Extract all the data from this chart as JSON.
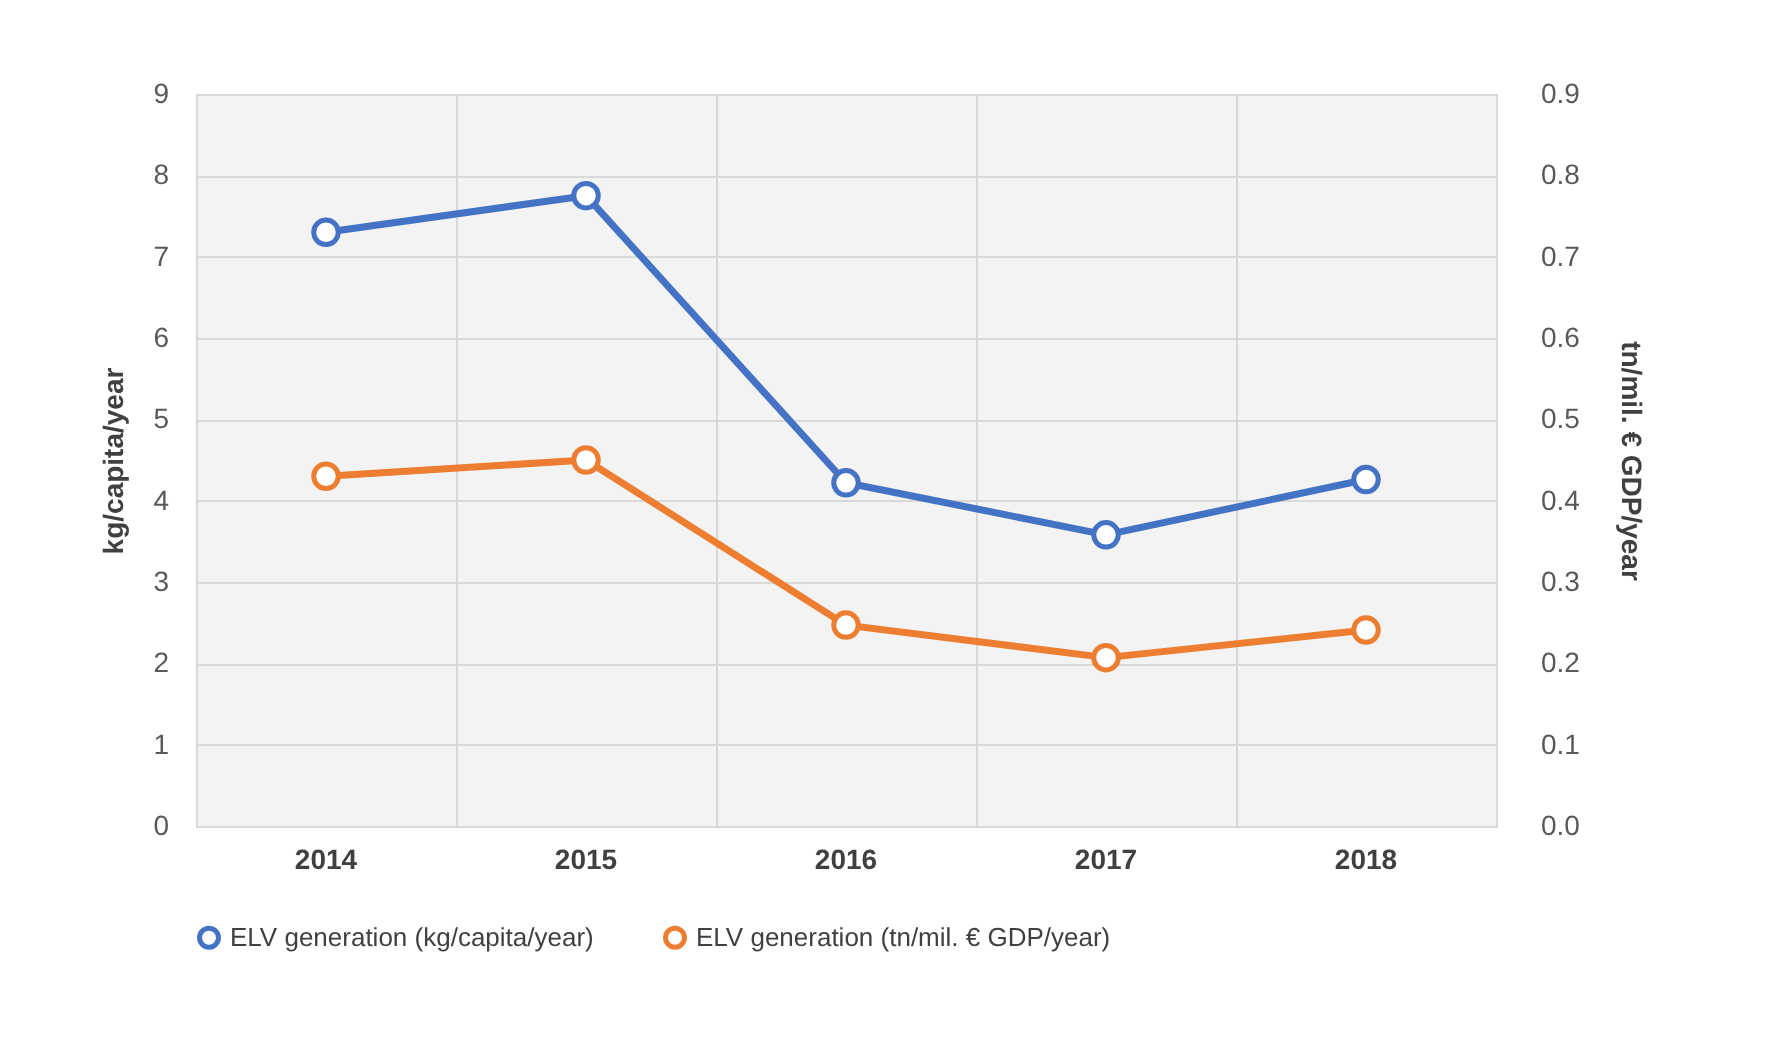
{
  "chart_data": {
    "type": "line",
    "categories": [
      "2014",
      "2015",
      "2016",
      "2017",
      "2018"
    ],
    "ylabel": "kg/capita/year",
    "y2label": "tn/mil. € GDP/year",
    "ylim": [
      0,
      9
    ],
    "yticks": [
      0,
      1,
      2,
      3,
      4,
      5,
      6,
      7,
      8,
      9
    ],
    "y2lim": [
      0,
      0.9
    ],
    "y2ticks": [
      {
        "value": 0,
        "label": "0.0"
      },
      {
        "value": 0.1,
        "label": "0.1"
      },
      {
        "value": 0.2,
        "label": "0.2"
      },
      {
        "value": 0.3,
        "label": "0.3"
      },
      {
        "value": 0.4,
        "label": "0.4"
      },
      {
        "value": 0.5,
        "label": "0.5"
      },
      {
        "value": 0.6,
        "label": "0.6"
      },
      {
        "value": 0.7,
        "label": "0.7"
      },
      {
        "value": 0.8,
        "label": "0.8"
      },
      {
        "value": 0.9,
        "label": "0.9"
      }
    ],
    "series": [
      {
        "name": "ELV generation (kg/capita/year)",
        "color": "#4472c4",
        "values": [
          7.3,
          7.75,
          4.22,
          3.58,
          4.26
        ]
      },
      {
        "name": "ELV generation (tn/mil. € GDP/year)",
        "color": "#ed7d31",
        "axis": "y2",
        "values": [
          0.43,
          0.45,
          0.247,
          0.207,
          0.241
        ]
      }
    ],
    "grid": true,
    "legend": "bottom",
    "marker": "circle",
    "line_style": "solid"
  }
}
